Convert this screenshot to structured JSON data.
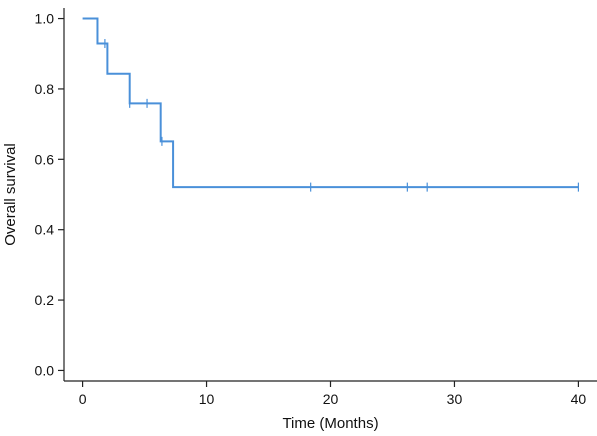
{
  "chart_data": {
    "type": "line",
    "step": true,
    "xlabel": "Time (Months)",
    "ylabel": "Overall survival",
    "xlim": [
      -1.5,
      41.5
    ],
    "ylim": [
      -0.03,
      1.03
    ],
    "xticks": [
      0,
      10,
      20,
      30,
      40
    ],
    "yticks": [
      0.0,
      0.2,
      0.4,
      0.6,
      0.8,
      1.0
    ],
    "xtick_labels": [
      "0",
      "10",
      "20",
      "30",
      "40"
    ],
    "ytick_labels": [
      "0.0",
      "0.2",
      "0.4",
      "0.6",
      "0.8",
      "1.0"
    ],
    "grid": false,
    "legend": "none",
    "series": [
      {
        "color": "#4a90d9",
        "steps": [
          {
            "x": 0,
            "y": 1.0
          },
          {
            "x": 1.2,
            "y": 0.929
          },
          {
            "x": 2.0,
            "y": 0.843
          },
          {
            "x": 3.8,
            "y": 0.759
          },
          {
            "x": 6.3,
            "y": 0.651
          },
          {
            "x": 7.3,
            "y": 0.521
          }
        ],
        "end_x": 40,
        "censored": [
          {
            "x": 1.8,
            "y": 0.929
          },
          {
            "x": 3.8,
            "y": 0.759
          },
          {
            "x": 5.2,
            "y": 0.759
          },
          {
            "x": 6.4,
            "y": 0.651
          },
          {
            "x": 18.4,
            "y": 0.521
          },
          {
            "x": 26.2,
            "y": 0.521
          },
          {
            "x": 27.8,
            "y": 0.521
          },
          {
            "x": 40.0,
            "y": 0.521
          }
        ]
      }
    ]
  }
}
